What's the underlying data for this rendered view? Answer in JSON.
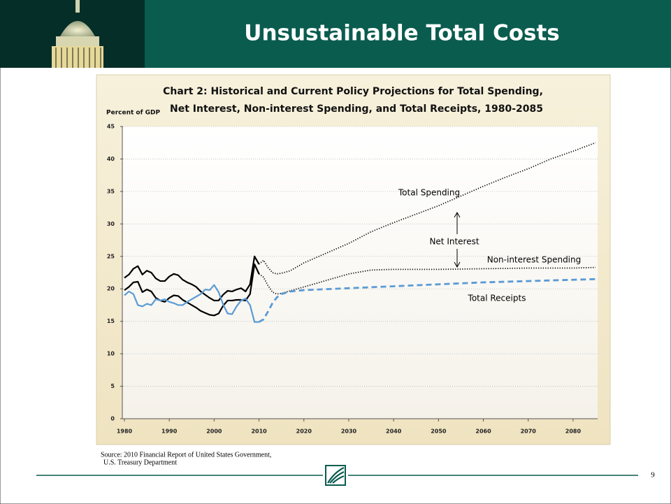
{
  "header": {
    "title": "Unsustainable Total Costs"
  },
  "chart_data": {
    "type": "line",
    "title": [
      "Chart 2:  Historical and Current Policy Projections for Total Spending,",
      "Net Interest, Non-interest Spending, and Total Receipts, 1980-2085"
    ],
    "y_label": "Percent of GDP",
    "xlim": [
      1980,
      2085
    ],
    "ylim": [
      0,
      45
    ],
    "xticks": [
      1980,
      1990,
      2000,
      2010,
      2020,
      2030,
      2040,
      2050,
      2060,
      2070,
      2080
    ],
    "yticks": [
      0,
      5,
      10,
      15,
      20,
      25,
      30,
      35,
      40,
      45
    ],
    "grid": true,
    "annotations": [
      "Total Spending",
      "Net Interest",
      "Non-interest Spending",
      "Total Receipts"
    ],
    "series": [
      {
        "color": "#000000",
        "line_style": "solid",
        "x": [
          1980,
          1981,
          1982,
          1983,
          1984,
          1985,
          1986,
          1987,
          1988,
          1989,
          1990,
          1991,
          1992,
          1993,
          1994,
          1995,
          1996,
          1997,
          1998,
          1999,
          2000,
          2001,
          2002,
          2003,
          2004,
          2005,
          2006,
          2007,
          2008,
          2009,
          2010
        ],
        "values": [
          21.7,
          22.2,
          23.1,
          23.5,
          22.2,
          22.8,
          22.5,
          21.6,
          21.2,
          21.2,
          21.9,
          22.3,
          22.1,
          21.4,
          21.0,
          20.7,
          20.3,
          19.6,
          19.1,
          18.6,
          18.2,
          18.2,
          19.1,
          19.7,
          19.6,
          19.9,
          20.1,
          19.6,
          20.7,
          25.0,
          23.8
        ]
      },
      {
        "color": "#000000",
        "line_style": "dotted",
        "x": [
          2010,
          2011,
          2012,
          2013,
          2014,
          2015,
          2017,
          2020,
          2025,
          2030,
          2035,
          2040,
          2045,
          2050,
          2055,
          2060,
          2065,
          2070,
          2075,
          2080,
          2085
        ],
        "values": [
          23.8,
          24.4,
          23.3,
          22.5,
          22.3,
          22.4,
          22.8,
          24.0,
          25.5,
          27.0,
          28.8,
          30.2,
          31.5,
          32.8,
          34.3,
          35.8,
          37.2,
          38.5,
          40.0,
          41.2,
          42.5
        ]
      },
      {
        "color": "#000000",
        "line_style": "solid",
        "x": [
          1980,
          1981,
          1982,
          1983,
          1984,
          1985,
          1986,
          1987,
          1988,
          1989,
          1990,
          1991,
          1992,
          1993,
          1994,
          1995,
          1996,
          1997,
          1998,
          1999,
          2000,
          2001,
          2002,
          2003,
          2004,
          2005,
          2006,
          2007,
          2008,
          2009,
          2010
        ],
        "values": [
          19.8,
          20.3,
          21.0,
          21.1,
          19.5,
          19.9,
          19.6,
          18.6,
          18.2,
          18.0,
          18.6,
          19.0,
          18.9,
          18.3,
          17.9,
          17.5,
          17.1,
          16.6,
          16.3,
          16.0,
          15.9,
          16.2,
          17.4,
          18.2,
          18.2,
          18.3,
          18.3,
          18.2,
          19.2,
          23.8,
          22.3
        ]
      },
      {
        "color": "#000000",
        "line_style": "dotted",
        "x": [
          2010,
          2011,
          2012,
          2013,
          2014,
          2015,
          2020,
          2025,
          2030,
          2035,
          2040,
          2050,
          2060,
          2070,
          2080,
          2085
        ],
        "values": [
          22.3,
          21.8,
          20.5,
          19.5,
          19.2,
          19.3,
          20.3,
          21.3,
          22.3,
          22.9,
          23.0,
          23.0,
          23.1,
          23.2,
          23.2,
          23.3
        ]
      },
      {
        "color": "#5b9bd5",
        "line_style": "solid",
        "x": [
          1980,
          1981,
          1982,
          1983,
          1984,
          1985,
          1986,
          1987,
          1988,
          1989,
          1990,
          1991,
          1992,
          1993,
          1994,
          1995,
          1996,
          1997,
          1998,
          1999,
          2000,
          2001,
          2002,
          2003,
          2004,
          2005,
          2006,
          2007,
          2008,
          2009,
          2010
        ],
        "values": [
          19.0,
          19.6,
          19.2,
          17.5,
          17.3,
          17.7,
          17.5,
          18.4,
          18.2,
          18.4,
          18.0,
          17.8,
          17.5,
          17.5,
          18.0,
          18.4,
          18.8,
          19.2,
          19.9,
          19.8,
          20.6,
          19.5,
          17.6,
          16.2,
          16.1,
          17.3,
          18.2,
          18.5,
          17.5,
          14.9,
          14.9
        ]
      },
      {
        "color": "#5b9bd5",
        "line_style": "dashed",
        "x": [
          2010,
          2011,
          2012,
          2013,
          2014,
          2015,
          2017,
          2020,
          2030,
          2040,
          2050,
          2060,
          2070,
          2080,
          2085
        ],
        "values": [
          14.9,
          15.3,
          16.5,
          17.8,
          18.7,
          19.2,
          19.6,
          19.8,
          20.1,
          20.4,
          20.7,
          21.0,
          21.2,
          21.4,
          21.5
        ]
      }
    ]
  },
  "footer": {
    "source": [
      "Source:  2010 Financial Report of United States Government,",
      "U.S. Treasury Department"
    ],
    "page_number": 9
  }
}
